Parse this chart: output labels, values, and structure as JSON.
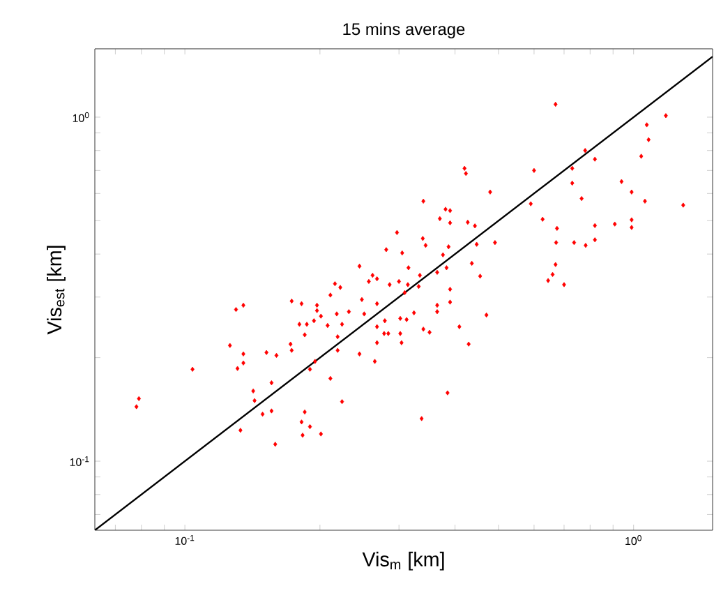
{
  "chart_data": {
    "type": "scatter",
    "title": "15 mins average",
    "xlabel": "Vis$_{m}$ [km]",
    "ylabel": "Vis$_{est}$ [km]",
    "log": "xy",
    "xlim": [
      0.063,
      1.5
    ],
    "ylim": [
      0.063,
      1.58
    ],
    "xticks": [
      {
        "value": 0.07,
        "label": null
      },
      {
        "value": 0.08,
        "label": null
      },
      {
        "value": 0.09,
        "label": null
      },
      {
        "value": 0.1,
        "label": "10$^{-1}$"
      },
      {
        "value": 0.2,
        "label": null
      },
      {
        "value": 0.3,
        "label": null
      },
      {
        "value": 0.4,
        "label": null
      },
      {
        "value": 0.5,
        "label": null
      },
      {
        "value": 0.6,
        "label": null
      },
      {
        "value": 0.7,
        "label": null
      },
      {
        "value": 0.8,
        "label": null
      },
      {
        "value": 0.9,
        "label": null
      },
      {
        "value": 1,
        "label": "10$^{0}$"
      }
    ],
    "yticks": [
      {
        "value": 0.07,
        "label": null
      },
      {
        "value": 0.08,
        "label": null
      },
      {
        "value": 0.09,
        "label": null
      },
      {
        "value": 0.1,
        "label": "10$^{-1}$"
      },
      {
        "value": 0.2,
        "label": null
      },
      {
        "value": 0.3,
        "label": null
      },
      {
        "value": 0.4,
        "label": null
      },
      {
        "value": 0.5,
        "label": null
      },
      {
        "value": 0.6,
        "label": null
      },
      {
        "value": 0.7,
        "label": null
      },
      {
        "value": 0.8,
        "label": null
      },
      {
        "value": 0.9,
        "label": null
      },
      {
        "value": 1,
        "label": "10$^{0}$"
      }
    ],
    "series": [
      {
        "marker": "diamond",
        "color": "#ff0000",
        "x": [
          0.67,
          1.18,
          1.07,
          1.08,
          0.78,
          0.82,
          1.04,
          0.42,
          0.423,
          0.6,
          0.73,
          0.73,
          0.94,
          0.99,
          0.766,
          0.479,
          0.59,
          1.06,
          1.29,
          0.34,
          0.381,
          0.39,
          0.37,
          0.39,
          0.427,
          0.443,
          0.627,
          0.675,
          0.82,
          0.908,
          0.99,
          0.99,
          0.297,
          0.339,
          0.344,
          0.281,
          0.305,
          0.387,
          0.376,
          0.447,
          0.491,
          0.672,
          0.737,
          0.782,
          0.82,
          0.315,
          0.383,
          0.436,
          0.67,
          0.66,
          0.645,
          0.7,
          0.455,
          0.245,
          0.365,
          0.334,
          0.262,
          0.257,
          0.268,
          0.286,
          0.3,
          0.314,
          0.216,
          0.222,
          0.39,
          0.332,
          0.173,
          0.182,
          0.197,
          0.211,
          0.13,
          0.135,
          0.197,
          0.201,
          0.194,
          0.18,
          0.187,
          0.185,
          0.208,
          0.218,
          0.232,
          0.251,
          0.248,
          0.268,
          0.309,
          0.324,
          0.302,
          0.312,
          0.365,
          0.365,
          0.39,
          0.224,
          0.219,
          0.268,
          0.279,
          0.278,
          0.284,
          0.268,
          0.302,
          0.304,
          0.34,
          0.351,
          0.409,
          0.47,
          0.429,
          0.219,
          0.245,
          0.265,
          0.172,
          0.173,
          0.152,
          0.16,
          0.135,
          0.126,
          0.135,
          0.131,
          0.195,
          0.19,
          0.104,
          0.156,
          0.142,
          0.143,
          0.149,
          0.156,
          0.211,
          0.224,
          0.385,
          0.337,
          0.185,
          0.182,
          0.19,
          0.183,
          0.201,
          0.133,
          0.159,
          0.079,
          0.078
        ],
        "values": [
          1.09,
          1.01,
          0.95,
          0.86,
          0.8,
          0.755,
          0.77,
          0.71,
          0.686,
          0.7,
          0.71,
          0.643,
          0.65,
          0.606,
          0.58,
          0.606,
          0.56,
          0.57,
          0.555,
          0.57,
          0.54,
          0.535,
          0.507,
          0.493,
          0.495,
          0.483,
          0.505,
          0.475,
          0.484,
          0.489,
          0.503,
          0.478,
          0.462,
          0.444,
          0.424,
          0.412,
          0.403,
          0.42,
          0.398,
          0.427,
          0.432,
          0.432,
          0.432,
          0.424,
          0.44,
          0.365,
          0.365,
          0.376,
          0.373,
          0.349,
          0.335,
          0.326,
          0.345,
          0.369,
          0.354,
          0.347,
          0.347,
          0.333,
          0.339,
          0.326,
          0.333,
          0.326,
          0.328,
          0.32,
          0.316,
          0.322,
          0.292,
          0.287,
          0.284,
          0.304,
          0.276,
          0.284,
          0.274,
          0.264,
          0.256,
          0.25,
          0.25,
          0.233,
          0.248,
          0.268,
          0.272,
          0.268,
          0.295,
          0.287,
          0.309,
          0.27,
          0.26,
          0.258,
          0.284,
          0.272,
          0.29,
          0.25,
          0.23,
          0.246,
          0.256,
          0.235,
          0.235,
          0.221,
          0.235,
          0.221,
          0.242,
          0.237,
          0.246,
          0.266,
          0.219,
          0.21,
          0.205,
          0.195,
          0.219,
          0.21,
          0.207,
          0.203,
          0.205,
          0.217,
          0.193,
          0.186,
          0.195,
          0.185,
          0.185,
          0.169,
          0.16,
          0.15,
          0.137,
          0.14,
          0.174,
          0.149,
          0.158,
          0.133,
          0.139,
          0.13,
          0.126,
          0.119,
          0.12,
          0.123,
          0.112,
          0.152,
          0.144
        ]
      },
      {
        "type": "line",
        "marker": "none",
        "color": "#000000",
        "x": [
          0.063,
          1.5
        ],
        "values": [
          0.063,
          1.5
        ]
      }
    ]
  }
}
